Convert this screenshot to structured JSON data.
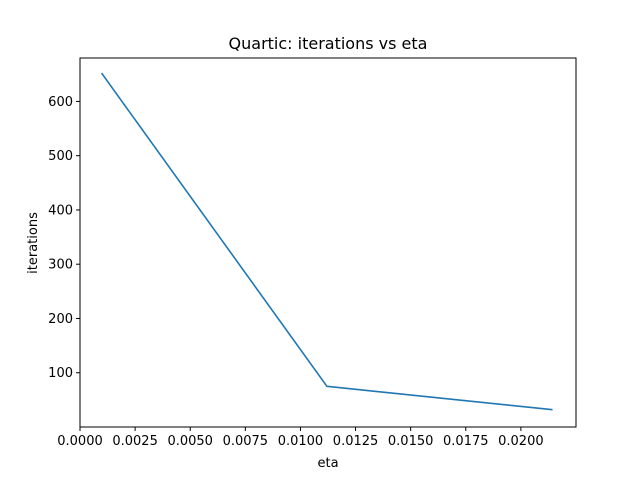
{
  "chart_data": {
    "type": "line",
    "title": "Quartic: iterations vs eta",
    "xlabel": "eta",
    "ylabel": "iterations",
    "xlim": [
      0.0,
      0.0225
    ],
    "ylim": [
      0,
      680
    ],
    "xticks": [
      0.0,
      0.0025,
      0.005,
      0.0075,
      0.01,
      0.0125,
      0.015,
      0.0175,
      0.02
    ],
    "xtick_labels": [
      "0.0000",
      "0.0025",
      "0.0050",
      "0.0075",
      "0.0100",
      "0.0125",
      "0.0150",
      "0.0175",
      "0.0200"
    ],
    "yticks": [
      100,
      200,
      300,
      400,
      500,
      600
    ],
    "ytick_labels": [
      "100",
      "200",
      "300",
      "400",
      "500",
      "600"
    ],
    "grid": false,
    "series": [
      {
        "color": "#1f77b4",
        "x": [
          0.001,
          0.0112,
          0.0214
        ],
        "y": [
          651,
          75,
          32
        ]
      }
    ]
  }
}
